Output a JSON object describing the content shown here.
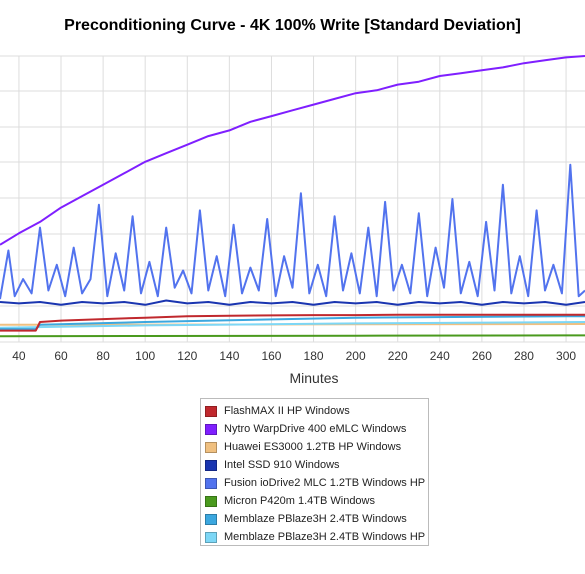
{
  "chart_data": {
    "type": "line",
    "title": "Preconditioning Curve - 4K 100% Write [Standard Deviation]",
    "xlabel": "Minutes",
    "ylabel": "",
    "xlim": [
      31,
      309
    ],
    "ylim": [
      0,
      1.0
    ],
    "x_ticks": [
      40,
      60,
      80,
      100,
      120,
      140,
      160,
      180,
      200,
      220,
      240,
      260,
      280,
      300
    ],
    "grid": true,
    "legend_position": "bottom-center",
    "series": [
      {
        "name": "FlashMAX II HP Windows",
        "color": "#c0282d",
        "x": [
          31,
          45,
          48,
          50,
          60,
          80,
          100,
          120,
          140,
          160,
          180,
          200,
          220,
          240,
          260,
          280,
          300,
          309
        ],
        "y": [
          0.04,
          0.04,
          0.04,
          0.07,
          0.075,
          0.08,
          0.085,
          0.09,
          0.092,
          0.093,
          0.094,
          0.094,
          0.095,
          0.095,
          0.095,
          0.095,
          0.095,
          0.095
        ]
      },
      {
        "name": "Nytro WarpDrive 400 eMLC Windows",
        "color": "#7f1fff",
        "x": [
          31,
          40,
          50,
          60,
          70,
          80,
          90,
          100,
          110,
          120,
          130,
          140,
          150,
          160,
          170,
          180,
          190,
          200,
          210,
          220,
          230,
          240,
          250,
          260,
          270,
          280,
          290,
          300,
          309
        ],
        "y": [
          0.34,
          0.38,
          0.42,
          0.47,
          0.51,
          0.55,
          0.59,
          0.63,
          0.66,
          0.69,
          0.72,
          0.74,
          0.77,
          0.79,
          0.81,
          0.83,
          0.85,
          0.87,
          0.88,
          0.9,
          0.91,
          0.93,
          0.94,
          0.95,
          0.96,
          0.975,
          0.985,
          0.995,
          1.0
        ]
      },
      {
        "name": "Huawei ES3000 1.2TB HP Windows",
        "color": "#f0c080",
        "x": [
          31,
          100,
          200,
          309
        ],
        "y": [
          0.06,
          0.061,
          0.062,
          0.063
        ]
      },
      {
        "name": "Intel SSD 910 Windows",
        "color": "#1a35b0",
        "x": [
          31,
          40,
          50,
          60,
          70,
          80,
          90,
          100,
          110,
          120,
          130,
          140,
          150,
          160,
          170,
          180,
          190,
          200,
          210,
          220,
          230,
          240,
          250,
          260,
          270,
          280,
          290,
          300,
          309
        ],
        "y": [
          0.14,
          0.135,
          0.14,
          0.13,
          0.14,
          0.135,
          0.14,
          0.13,
          0.145,
          0.135,
          0.14,
          0.13,
          0.14,
          0.135,
          0.14,
          0.13,
          0.14,
          0.135,
          0.14,
          0.13,
          0.14,
          0.135,
          0.14,
          0.13,
          0.14,
          0.135,
          0.14,
          0.13,
          0.14
        ]
      },
      {
        "name": "Fusion ioDrive2 MLC 1.2TB Windows HP",
        "color": "#5273ee",
        "x": [
          31,
          35,
          38,
          42,
          46,
          50,
          54,
          58,
          62,
          66,
          70,
          74,
          78,
          82,
          86,
          90,
          94,
          98,
          102,
          106,
          110,
          114,
          118,
          122,
          126,
          130,
          134,
          138,
          142,
          146,
          150,
          154,
          158,
          162,
          166,
          170,
          174,
          178,
          182,
          186,
          190,
          194,
          198,
          202,
          206,
          210,
          214,
          218,
          222,
          226,
          230,
          234,
          238,
          242,
          246,
          250,
          254,
          258,
          262,
          266,
          270,
          274,
          278,
          282,
          286,
          290,
          294,
          298,
          302,
          306,
          309
        ],
        "y": [
          0.15,
          0.32,
          0.16,
          0.22,
          0.17,
          0.4,
          0.18,
          0.27,
          0.16,
          0.33,
          0.17,
          0.22,
          0.48,
          0.16,
          0.31,
          0.18,
          0.44,
          0.17,
          0.28,
          0.16,
          0.4,
          0.19,
          0.25,
          0.17,
          0.46,
          0.18,
          0.3,
          0.16,
          0.41,
          0.17,
          0.26,
          0.18,
          0.43,
          0.16,
          0.3,
          0.19,
          0.52,
          0.17,
          0.27,
          0.16,
          0.44,
          0.18,
          0.31,
          0.17,
          0.4,
          0.16,
          0.49,
          0.18,
          0.27,
          0.17,
          0.45,
          0.16,
          0.33,
          0.19,
          0.5,
          0.17,
          0.28,
          0.16,
          0.42,
          0.18,
          0.55,
          0.17,
          0.3,
          0.16,
          0.46,
          0.18,
          0.27,
          0.17,
          0.62,
          0.16,
          0.18
        ]
      },
      {
        "name": "Micron P420m 1.4TB Windows",
        "color": "#4a9a1e",
        "x": [
          31,
          100,
          200,
          300,
          309
        ],
        "y": [
          0.02,
          0.021,
          0.022,
          0.023,
          0.023
        ]
      },
      {
        "name": "Memblaze PBlaze3H 2.4TB Windows",
        "color": "#3ba7df",
        "x": [
          31,
          48,
          50,
          100,
          200,
          300,
          309
        ],
        "y": [
          0.045,
          0.045,
          0.06,
          0.07,
          0.085,
          0.09,
          0.09
        ]
      },
      {
        "name": "Memblaze PBlaze3H 2.4TB Windows HP",
        "color": "#7dd7f6",
        "x": [
          31,
          100,
          200,
          309
        ],
        "y": [
          0.05,
          0.058,
          0.065,
          0.07
        ]
      }
    ]
  }
}
